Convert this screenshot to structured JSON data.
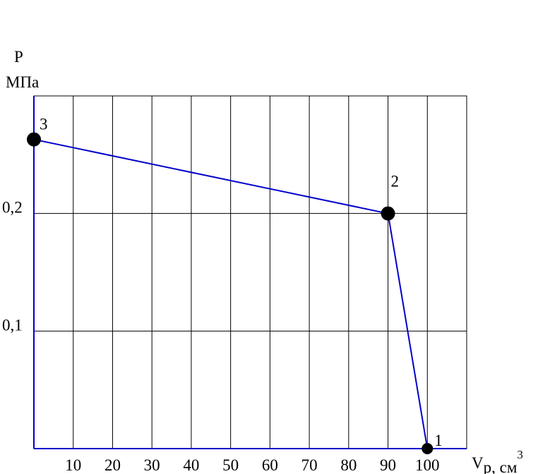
{
  "chart_data": {
    "type": "line",
    "y_label": [
      "P",
      "МПа"
    ],
    "x_label": [
      "V",
      "p, см",
      "3"
    ],
    "x": [
      100,
      90,
      0
    ],
    "series": [
      {
        "color": "#0000cc",
        "marker_color": "#000000",
        "values": [
          0,
          0.2,
          0.263
        ]
      }
    ],
    "point_labels": [
      "1",
      "2",
      "3"
    ],
    "xlim": [
      0,
      110
    ],
    "ylim": [
      0,
      0.3
    ],
    "xticks": [
      10,
      20,
      30,
      40,
      50,
      60,
      70,
      80,
      90,
      100
    ],
    "yticks": [
      {
        "value": 0.1,
        "label": "0,1"
      },
      {
        "value": 0.2,
        "label": "0,2"
      }
    ],
    "grid": true
  }
}
